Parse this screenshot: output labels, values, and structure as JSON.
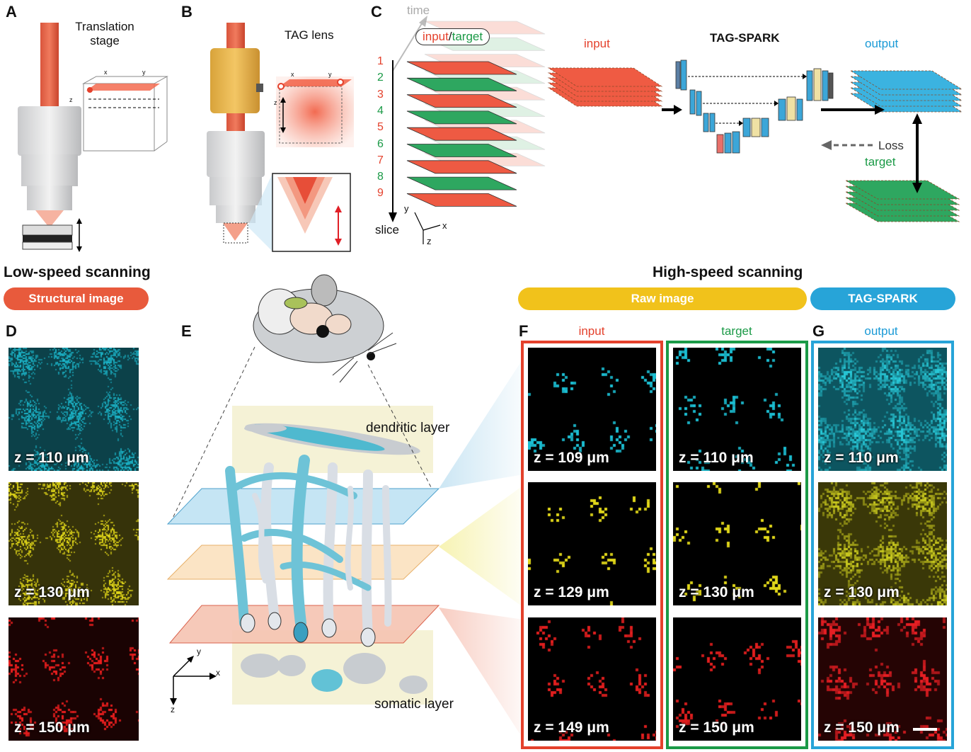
{
  "panel_letters": {
    "A": "A",
    "B": "B",
    "C": "C",
    "D": "D",
    "E": "E",
    "F": "F",
    "G": "G"
  },
  "panel_a": {
    "label_line1": "Translation",
    "label_line2": "stage",
    "axis_x": "x",
    "axis_y": "y",
    "axis_z": "z"
  },
  "panel_b": {
    "label": "TAG lens",
    "axis_x": "x",
    "axis_y": "y",
    "axis_z": "z"
  },
  "panel_c": {
    "time": "time",
    "input_word": "input",
    "slash": "/",
    "target_word": "target",
    "slice": "slice",
    "slices": [
      "1",
      "2",
      "3",
      "4",
      "5",
      "6",
      "7",
      "8",
      "9"
    ],
    "slice_colors": [
      "#e4412c",
      "#1b9a47",
      "#e4412c",
      "#1b9a47",
      "#e4412c",
      "#1b9a47",
      "#e4412c",
      "#1b9a47",
      "#e4412c"
    ],
    "axis_x": "x",
    "axis_y": "y",
    "axis_z": "z",
    "input_label": "input",
    "title": "TAG-SPARK",
    "output_label": "output",
    "loss": "Loss",
    "target_label": "target"
  },
  "sections": {
    "low_speed": "Low-speed scanning",
    "high_speed": "High-speed scanning",
    "structural_image": "Structural image",
    "raw_image": "Raw image",
    "tag_spark": "TAG-SPARK"
  },
  "panel_d": {
    "z_labels": [
      "z = 110 μm",
      "z = 130 μm",
      "z = 150 μm"
    ]
  },
  "panel_e": {
    "dendritic": "dendritic layer",
    "somatic": "somatic layer",
    "axis_x": "x",
    "axis_y": "y",
    "axis_z": "z"
  },
  "panel_f": {
    "input_title": "input",
    "target_title": "target",
    "input_z": [
      "z = 109 μm",
      "z = 129 μm",
      "z = 149 μm"
    ],
    "target_z": [
      "z = 110 μm",
      "z = 130 μm",
      "z = 150 μm"
    ]
  },
  "panel_g": {
    "output_title": "output",
    "z_labels": [
      "z = 110 μm",
      "z = 130 μm",
      "z = 150 μm"
    ]
  },
  "colors": {
    "red": "#e4412c",
    "green": "#1b9a47",
    "blue": "#27a4d8",
    "yellow": "#f1c21b",
    "cyan_channel": "#1bb4c8",
    "yellow_channel": "#d9d21a",
    "red_channel": "#e81c1c"
  }
}
